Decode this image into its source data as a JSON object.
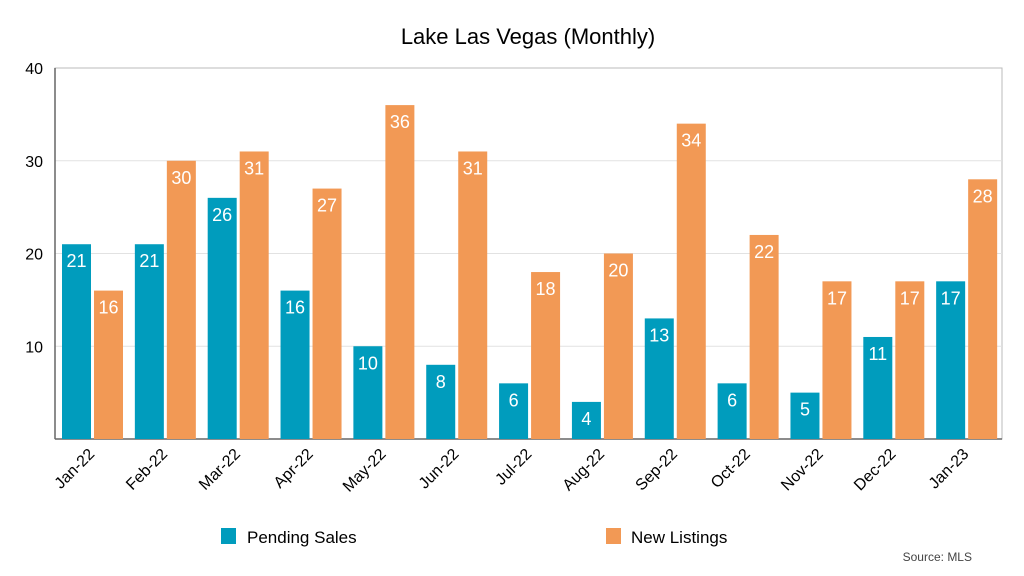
{
  "chart_data": {
    "type": "bar",
    "title": "Lake Las Vegas (Monthly)",
    "xlabel": "",
    "ylabel": "",
    "ylim": [
      0,
      40
    ],
    "yticks": [
      10,
      20,
      30,
      40
    ],
    "grid": true,
    "legend_position": "bottom",
    "categories": [
      "Jan-22",
      "Feb-22",
      "Mar-22",
      "Apr-22",
      "May-22",
      "Jun-22",
      "Jul-22",
      "Aug-22",
      "Sep-22",
      "Oct-22",
      "Nov-22",
      "Dec-22",
      "Jan-23"
    ],
    "series": [
      {
        "name": "Pending Sales",
        "color": "#009cbd",
        "values": [
          21,
          21,
          26,
          16,
          10,
          8,
          6,
          4,
          13,
          6,
          5,
          11,
          17
        ]
      },
      {
        "name": "New Listings",
        "color": "#f29955",
        "values": [
          16,
          30,
          31,
          27,
          36,
          31,
          18,
          20,
          34,
          22,
          17,
          17,
          28
        ]
      }
    ],
    "source": "Source: MLS"
  }
}
